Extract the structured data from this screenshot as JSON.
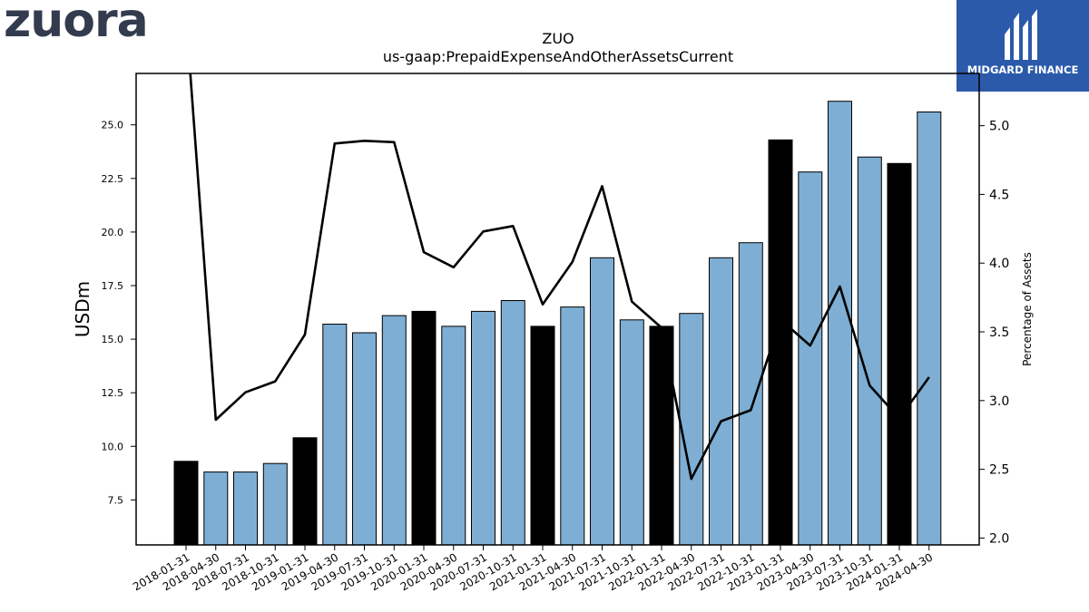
{
  "logos": {
    "left_text": "zuora",
    "right_text": "MIDGARD FINANCE"
  },
  "chart_data": {
    "type": "bar",
    "title": "ZUO",
    "subtitle": "us-gaap:PrepaidExpenseAndOtherAssetsCurrent",
    "ylabel": "USDm",
    "y2label": "Percentage of Assets",
    "ylim": [
      5.4,
      27.4
    ],
    "y2lim": [
      1.95,
      5.38
    ],
    "yticks": [
      "7.5",
      "10.0",
      "12.5",
      "15.0",
      "17.5",
      "20.0",
      "22.5",
      "25.0"
    ],
    "y2ticks": [
      "2.0",
      "2.5",
      "3.0",
      "3.5",
      "4.0",
      "4.5",
      "5.0"
    ],
    "grid": false,
    "categories": [
      "2018-01-31",
      "2018-04-30",
      "2018-07-31",
      "2018-10-31",
      "2019-01-31",
      "2019-04-30",
      "2019-07-31",
      "2019-10-31",
      "2020-01-31",
      "2020-04-30",
      "2020-07-31",
      "2020-10-31",
      "2021-01-31",
      "2021-04-30",
      "2021-07-31",
      "2021-10-31",
      "2022-01-31",
      "2022-04-30",
      "2022-07-31",
      "2022-10-31",
      "2023-01-31",
      "2023-04-30",
      "2023-07-31",
      "2023-10-31",
      "2024-01-31",
      "2024-04-30"
    ],
    "series": [
      {
        "type": "bar",
        "values": [
          9.3,
          8.8,
          8.8,
          9.2,
          10.4,
          15.7,
          15.3,
          16.1,
          16.3,
          15.6,
          16.3,
          16.8,
          15.6,
          16.5,
          18.8,
          15.9,
          15.6,
          16.2,
          18.8,
          19.5,
          24.3,
          22.8,
          26.1,
          23.5,
          23.2,
          25.6
        ],
        "highlight": [
          true,
          false,
          false,
          false,
          true,
          false,
          false,
          false,
          true,
          false,
          false,
          false,
          true,
          false,
          false,
          false,
          true,
          false,
          false,
          false,
          true,
          false,
          false,
          false,
          true,
          false
        ],
        "color": "#7eaed3",
        "highlight_color": "#000000"
      },
      {
        "type": "line",
        "axis": "right",
        "values": [
          5.8,
          2.86,
          3.06,
          3.14,
          3.48,
          4.87,
          4.89,
          4.88,
          4.08,
          3.97,
          4.23,
          4.27,
          3.7,
          4.01,
          4.56,
          3.72,
          3.53,
          2.43,
          2.85,
          2.93,
          3.59,
          3.4,
          3.83,
          3.11,
          2.87,
          3.17
        ],
        "color": "#000000"
      }
    ]
  }
}
